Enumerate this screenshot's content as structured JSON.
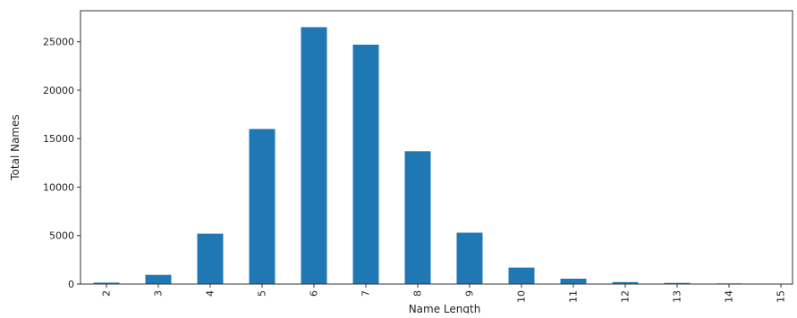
{
  "chart_data": {
    "type": "bar",
    "categories": [
      "2",
      "3",
      "4",
      "5",
      "6",
      "7",
      "8",
      "9",
      "10",
      "11",
      "12",
      "13",
      "14",
      "15"
    ],
    "values": [
      150,
      950,
      5200,
      16000,
      26500,
      24700,
      13700,
      5300,
      1700,
      550,
      200,
      120,
      60,
      20
    ],
    "xlabel": "Name Length",
    "ylabel": "Total Names",
    "ylim": [
      0,
      28200
    ],
    "yticks": [
      0,
      5000,
      10000,
      15000,
      20000,
      25000
    ],
    "grid": false,
    "bar_color": "#1f77b4"
  }
}
